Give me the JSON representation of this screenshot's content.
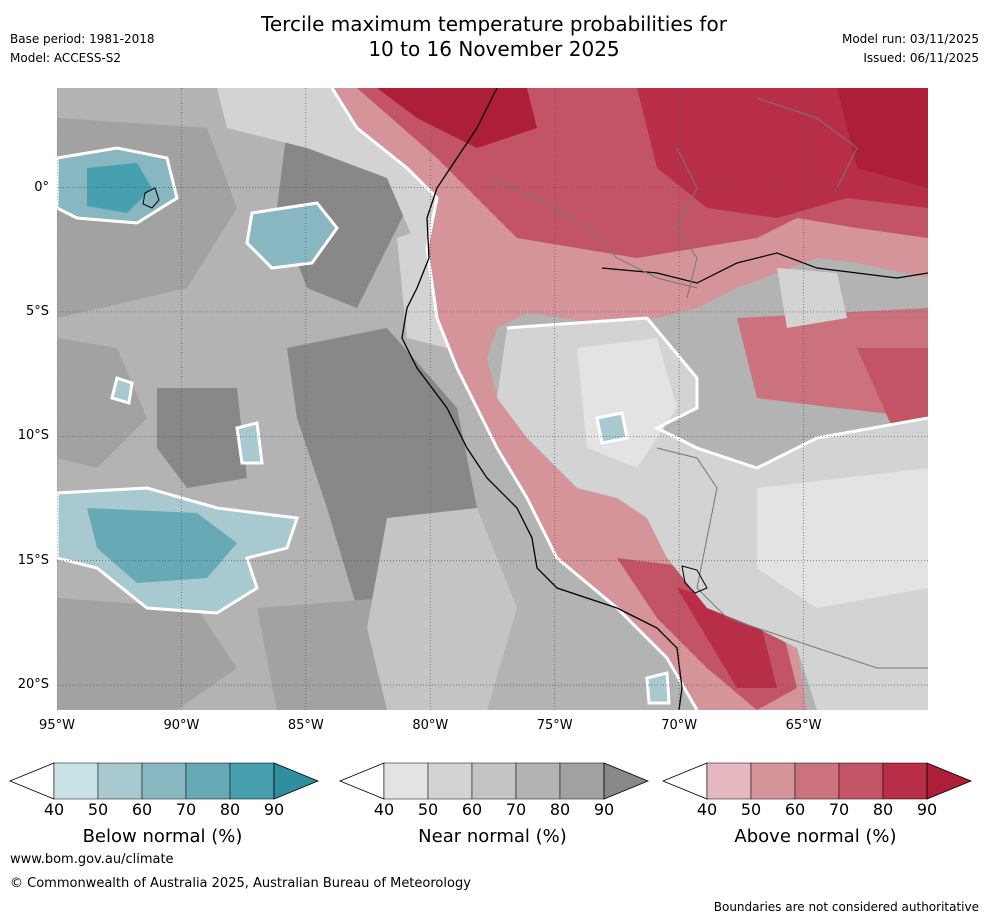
{
  "header": {
    "title_line1": "Tercile maximum temperature probabilities for",
    "title_line2": "10 to 16 November 2025",
    "base_period": "Base period: 1981-2018",
    "model": "Model: ACCESS-S2",
    "model_run": "Model run: 03/11/2025",
    "issued": "Issued: 06/11/2025"
  },
  "map": {
    "lat_labels": [
      "0°",
      "5°S",
      "10°S",
      "15°S",
      "20°S"
    ],
    "lon_labels": [
      "95°W",
      "90°W",
      "85°W",
      "80°W",
      "75°W",
      "70°W",
      "65°W"
    ],
    "lat_range": [
      -21,
      4
    ],
    "lon_range": [
      -95,
      -60
    ]
  },
  "legend": {
    "below": {
      "label": "Below normal (%)",
      "ticks": [
        "40",
        "50",
        "60",
        "70",
        "80",
        "90"
      ],
      "colors": [
        "#c9e2e6",
        "#a7c9cf",
        "#88b7c2",
        "#67a9b4",
        "#46a0ae",
        "#2f8f9e"
      ]
    },
    "near": {
      "label": "Near normal (%)",
      "ticks": [
        "40",
        "50",
        "60",
        "70",
        "80",
        "90"
      ],
      "colors": [
        "#e3e3e3",
        "#d3d3d3",
        "#c4c4c4",
        "#b3b3b3",
        "#a2a2a2",
        "#888888"
      ]
    },
    "above": {
      "label": "Above normal (%)",
      "ticks": [
        "40",
        "50",
        "60",
        "70",
        "80",
        "90"
      ],
      "colors": [
        "#e4b8be",
        "#d5939a",
        "#cc727f",
        "#c25465",
        "#b82e46",
        "#ad1e37"
      ]
    }
  },
  "footer": {
    "url": "www.bom.gov.au/climate",
    "copyright": "© Commonwealth of Australia 2025, Australian Bureau of Meteorology",
    "disclaimer": "Boundaries are not considered authoritative"
  }
}
